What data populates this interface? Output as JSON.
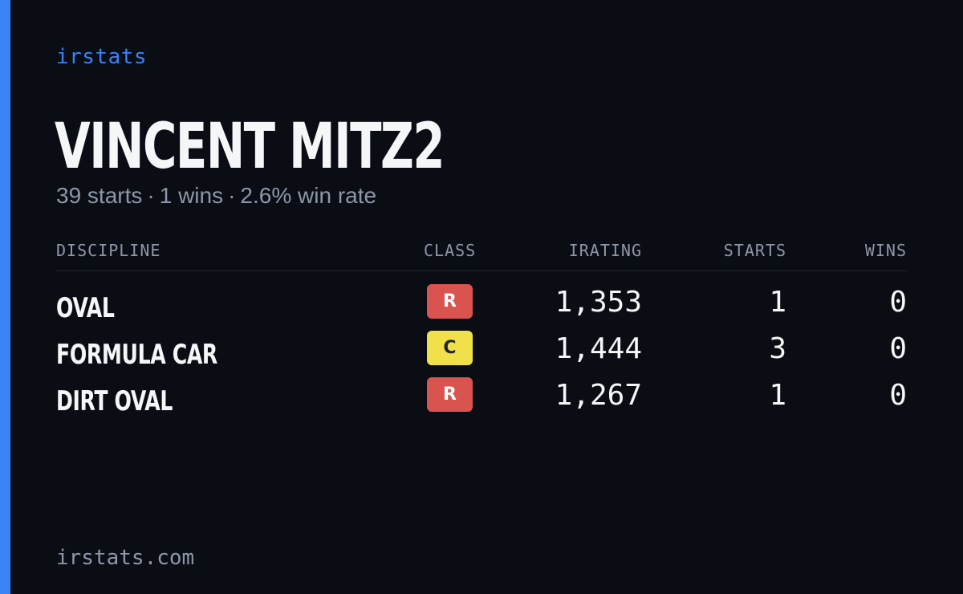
{
  "brand": "irstats",
  "driver": {
    "name": "VINCENT MITZ2",
    "starts_text": "39 starts",
    "wins_text": "1 wins",
    "win_rate_text": "2.6% win rate",
    "separator": "·"
  },
  "table": {
    "headers": {
      "discipline": "DISCIPLINE",
      "class": "CLASS",
      "irating": "IRATING",
      "starts": "STARTS",
      "wins": "WINS"
    },
    "rows": [
      {
        "discipline": "OVAL",
        "class": "R",
        "class_bg": "#d9534f",
        "class_fg": "#ffffff",
        "irating": "1,353",
        "starts": "1",
        "wins": "0"
      },
      {
        "discipline": "FORMULA CAR",
        "class": "C",
        "class_bg": "#f0e14a",
        "class_fg": "#1f2430",
        "irating": "1,444",
        "starts": "3",
        "wins": "0"
      },
      {
        "discipline": "DIRT OVAL",
        "class": "R",
        "class_bg": "#d9534f",
        "class_fg": "#ffffff",
        "irating": "1,267",
        "starts": "1",
        "wins": "0"
      }
    ]
  },
  "footer": "irstats.com",
  "colors": {
    "background": "#0a0d14",
    "accent": "#3b82f6",
    "text_primary": "#f5f6f8",
    "text_muted": "#8e97a8"
  }
}
